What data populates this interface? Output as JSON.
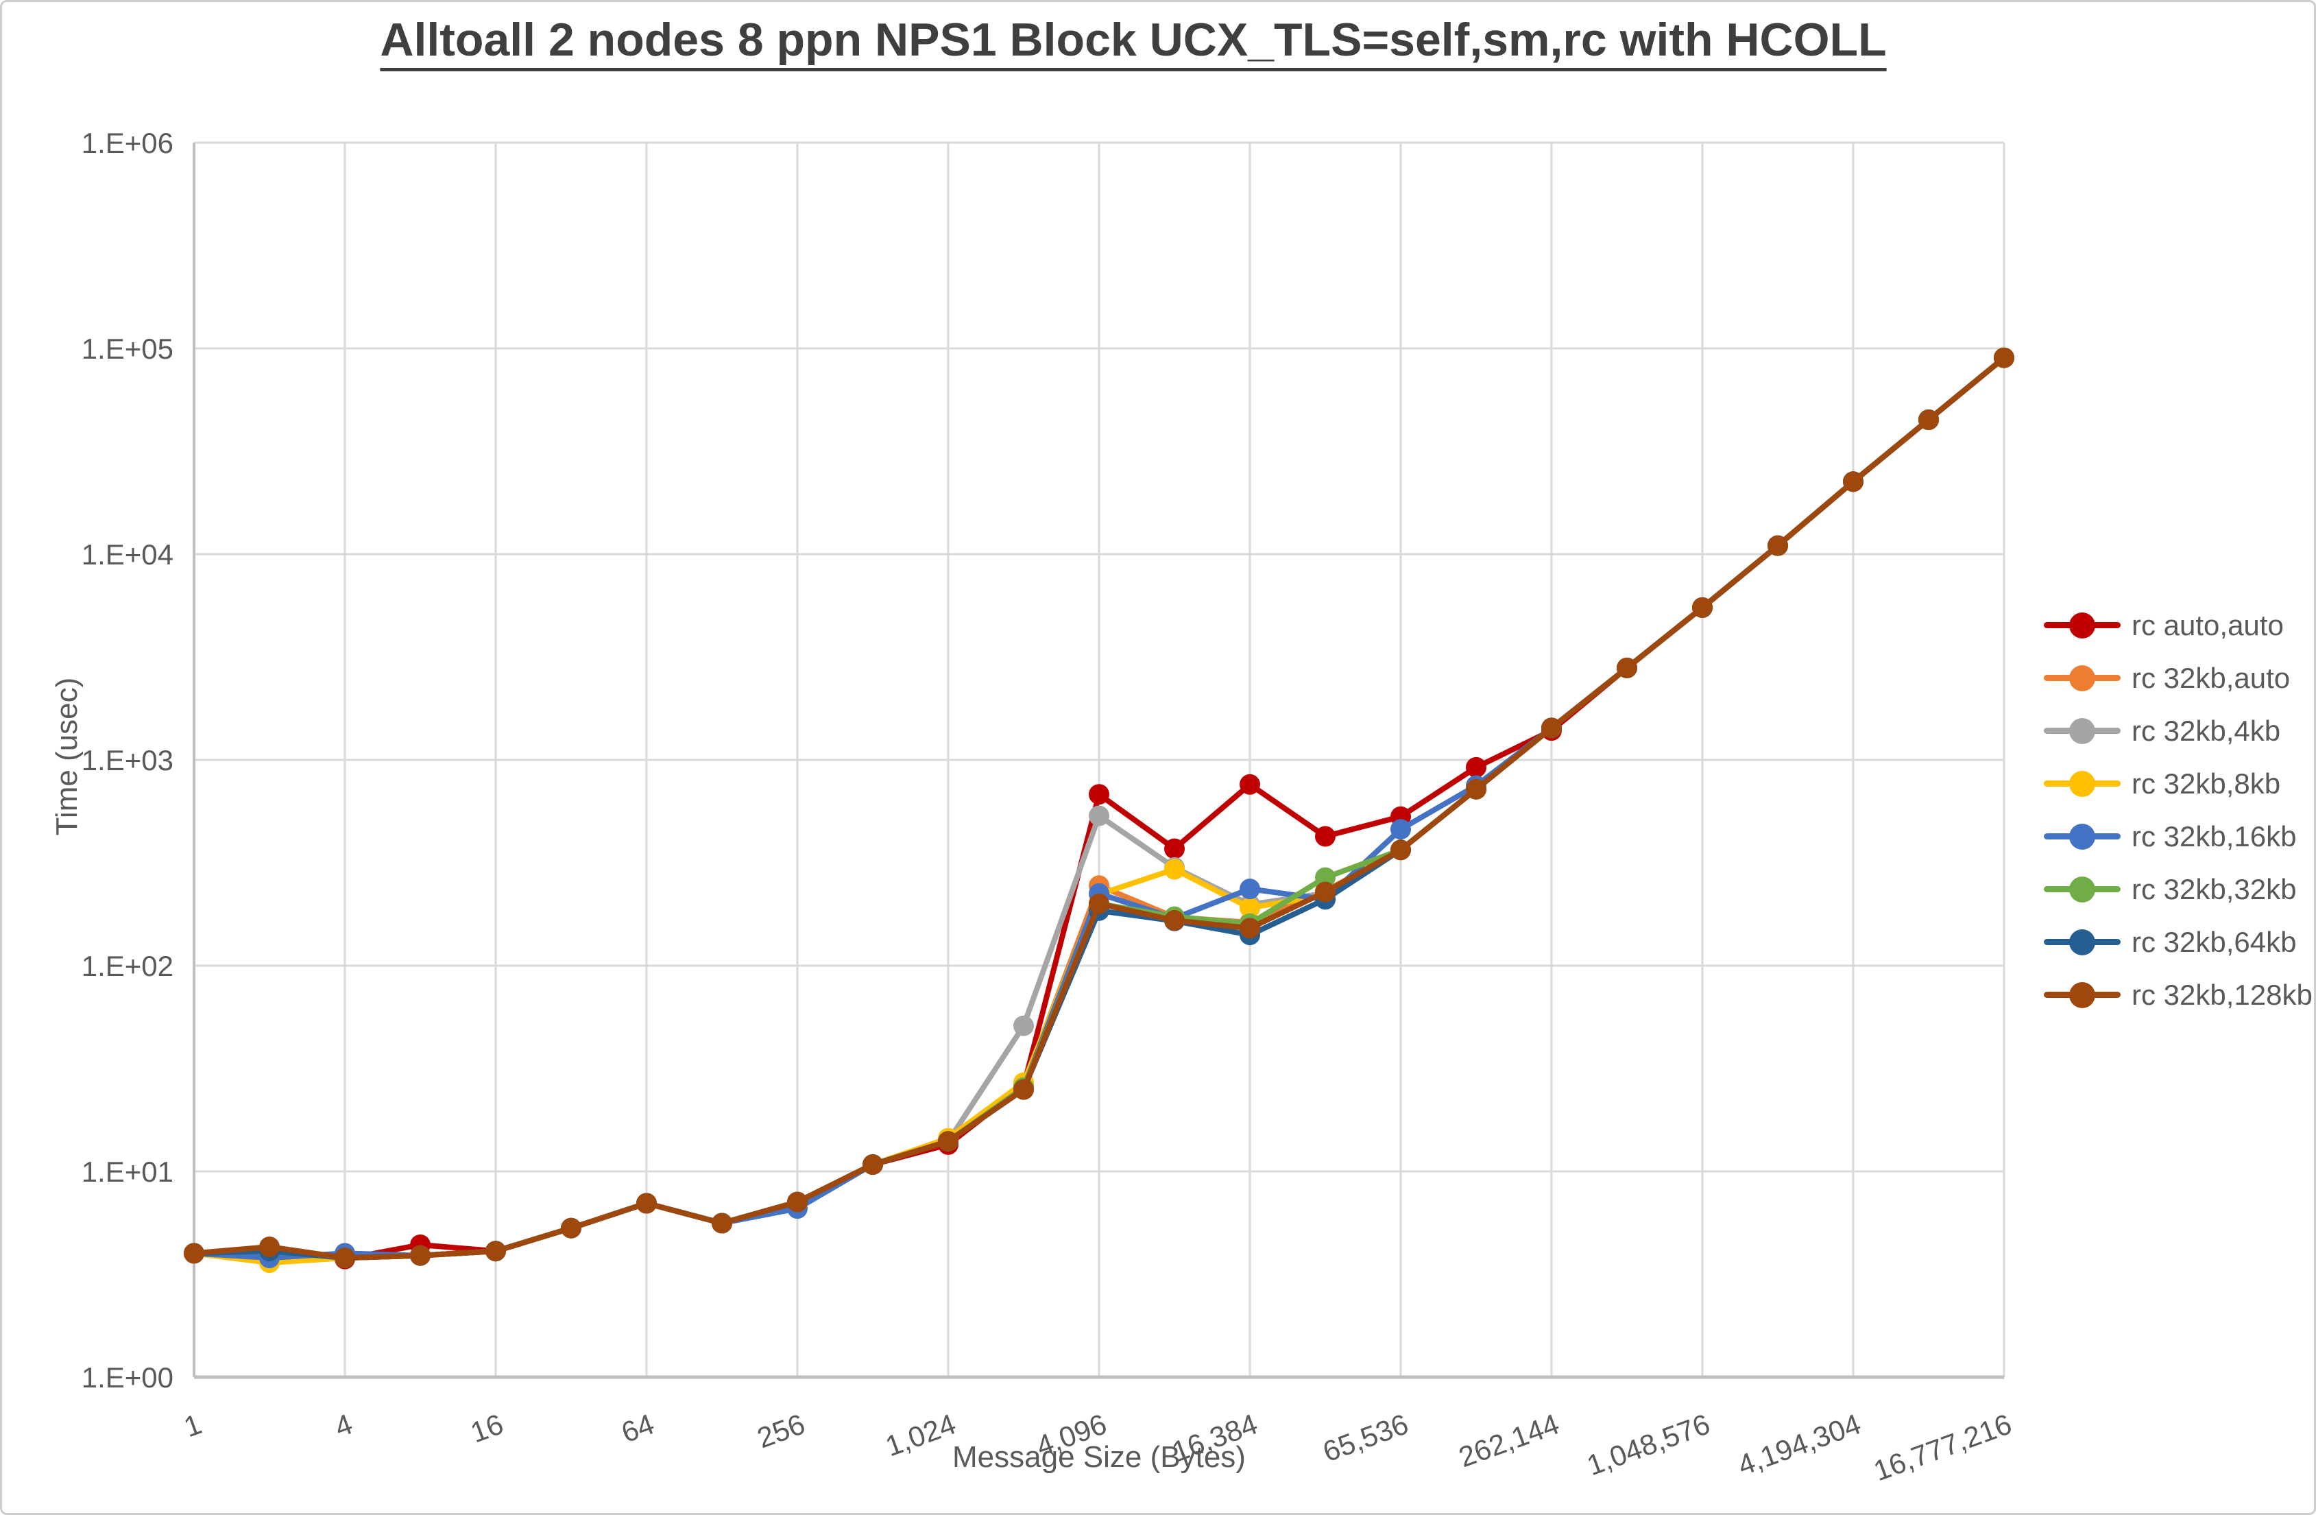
{
  "title": "Alltoall 2 nodes 8 ppn NPS1 Block UCX_TLS=self,sm,rc with HCOLL",
  "chart_data": {
    "type": "line",
    "title": "Alltoall 2 nodes 8 ppn NPS1 Block UCX_TLS=self,sm,rc with HCOLL",
    "grid": true,
    "legend_position": "right",
    "x_axis": {
      "label": "Message Size (Bytes)",
      "scale": "log2",
      "tick_labels": [
        "1",
        "4",
        "16",
        "64",
        "256",
        "1,024",
        "4,096",
        "16,384",
        "65,536",
        "262,144",
        "1,048,576",
        "4,194,304",
        "16,777,216"
      ],
      "tick_values": [
        1,
        4,
        16,
        64,
        256,
        1024,
        4096,
        16384,
        65536,
        262144,
        1048576,
        4194304,
        16777216
      ]
    },
    "y_axis": {
      "label": "Time (usec)",
      "scale": "log10",
      "tick_labels": [
        "1.E+00",
        "1.E+01",
        "1.E+02",
        "1.E+03",
        "1.E+04",
        "1.E+05",
        "1.E+06"
      ],
      "range": [
        1,
        1000000
      ]
    },
    "categories": [
      1,
      2,
      4,
      8,
      16,
      32,
      64,
      128,
      256,
      512,
      1024,
      2048,
      4096,
      8192,
      16384,
      32768,
      65536,
      131072,
      262144,
      524288,
      1048576,
      2097152,
      4194304,
      8388608,
      16777216
    ],
    "series": [
      {
        "name": "rc auto,auto",
        "color": "#C00000",
        "values": [
          4.0,
          4.1,
          3.75,
          4.4,
          4.1,
          5.3,
          7.0,
          5.6,
          7.1,
          10.8,
          13.5,
          26,
          680,
          370,
          760,
          425,
          530,
          920,
          1390,
          2800,
          5500,
          11000,
          22500,
          45000,
          90000
        ]
      },
      {
        "name": "rc 32kb,auto",
        "color": "#ED7D31",
        "values": [
          4.0,
          4.1,
          3.8,
          3.9,
          4.1,
          5.3,
          7.0,
          5.6,
          7.1,
          10.8,
          14,
          26,
          245,
          172,
          162,
          230,
          365,
          720,
          1430,
          2800,
          5500,
          11000,
          22500,
          45000,
          90000
        ]
      },
      {
        "name": "rc 32kb,4kb",
        "color": "#A5A5A5",
        "values": [
          4.0,
          4.0,
          3.8,
          3.9,
          4.1,
          5.3,
          7.0,
          5.6,
          7.1,
          10.8,
          14,
          51,
          535,
          300,
          198,
          225,
          365,
          720,
          1430,
          2800,
          5500,
          11000,
          22500,
          45000,
          90000
        ]
      },
      {
        "name": "rc 32kb,8kb",
        "color": "#FFC000",
        "values": [
          4.0,
          3.6,
          3.8,
          3.9,
          4.1,
          5.3,
          7.0,
          5.6,
          7.1,
          10.8,
          14.5,
          27,
          222,
          294,
          191,
          220,
          365,
          720,
          1430,
          2800,
          5500,
          11000,
          22500,
          45000,
          90000
        ]
      },
      {
        "name": "rc 32kb,16kb",
        "color": "#4472C4",
        "values": [
          4.0,
          3.8,
          4.0,
          3.9,
          4.1,
          5.3,
          7.0,
          5.6,
          6.6,
          10.8,
          14,
          25.5,
          224,
          170,
          236,
          210,
          460,
          750,
          1430,
          2800,
          5500,
          11000,
          22500,
          45000,
          90000
        ]
      },
      {
        "name": "rc 32kb,32kb",
        "color": "#70AD47",
        "values": [
          4.0,
          4.1,
          3.8,
          3.9,
          4.1,
          5.3,
          7.0,
          5.6,
          7.1,
          10.8,
          14,
          25.5,
          200,
          173,
          160,
          268,
          365,
          720,
          1430,
          2800,
          5500,
          11000,
          22500,
          45000,
          90000
        ]
      },
      {
        "name": "rc 32kb,64kb",
        "color": "#255E91",
        "values": [
          4.0,
          4.1,
          3.8,
          3.9,
          4.1,
          5.3,
          7.0,
          5.6,
          7.1,
          10.8,
          14,
          25,
          185,
          165,
          141,
          210,
          365,
          720,
          1430,
          2800,
          5500,
          11000,
          22500,
          45000,
          90000
        ]
      },
      {
        "name": "rc 32kb,128kb",
        "color": "#9E480E",
        "values": [
          4.0,
          4.3,
          3.8,
          3.9,
          4.1,
          5.3,
          7.0,
          5.6,
          7.1,
          10.8,
          14,
          25,
          200,
          166,
          152,
          228,
          365,
          720,
          1430,
          2800,
          5500,
          11000,
          22500,
          45000,
          90000
        ]
      }
    ],
    "colors": {
      "grid": "#D9D9D9",
      "axis": "#BFBFBF",
      "tick_text": "#595959",
      "title_text": "#3F3F3F"
    }
  }
}
